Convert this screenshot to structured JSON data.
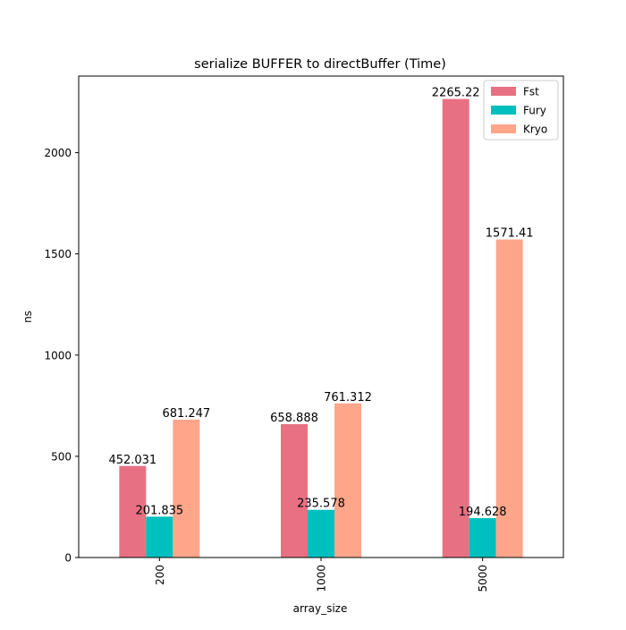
{
  "colors": {
    "fst": "#e87083",
    "fury": "#00bfbf",
    "kryo": "#ffa58a",
    "axis": "#000000",
    "background": "#ffffff"
  },
  "chart_data": {
    "type": "bar",
    "title": "serialize BUFFER to directBuffer (Time)",
    "xlabel": "array_size",
    "ylabel": "ns",
    "categories": [
      "200",
      "1000",
      "5000"
    ],
    "series": [
      {
        "name": "Fst",
        "values": [
          452.031,
          658.888,
          2265.22
        ],
        "labels": [
          "452.031",
          "658.888",
          "2265.22"
        ]
      },
      {
        "name": "Fury",
        "values": [
          201.835,
          235.578,
          194.628
        ],
        "labels": [
          "201.835",
          "235.578",
          "194.628"
        ]
      },
      {
        "name": "Kryo",
        "values": [
          681.247,
          761.312,
          1571.41
        ],
        "labels": [
          "681.247",
          "761.312",
          "1571.41"
        ]
      }
    ],
    "ylim": [
      0,
      2378.48
    ],
    "yticks": [
      0,
      500,
      1000,
      1500,
      2000
    ],
    "ytick_labels": [
      "0",
      "500",
      "1000",
      "1500",
      "2000"
    ],
    "grid": false,
    "legend": {
      "position": "top-right",
      "entries": [
        "Fst",
        "Fury",
        "Kryo"
      ]
    }
  }
}
